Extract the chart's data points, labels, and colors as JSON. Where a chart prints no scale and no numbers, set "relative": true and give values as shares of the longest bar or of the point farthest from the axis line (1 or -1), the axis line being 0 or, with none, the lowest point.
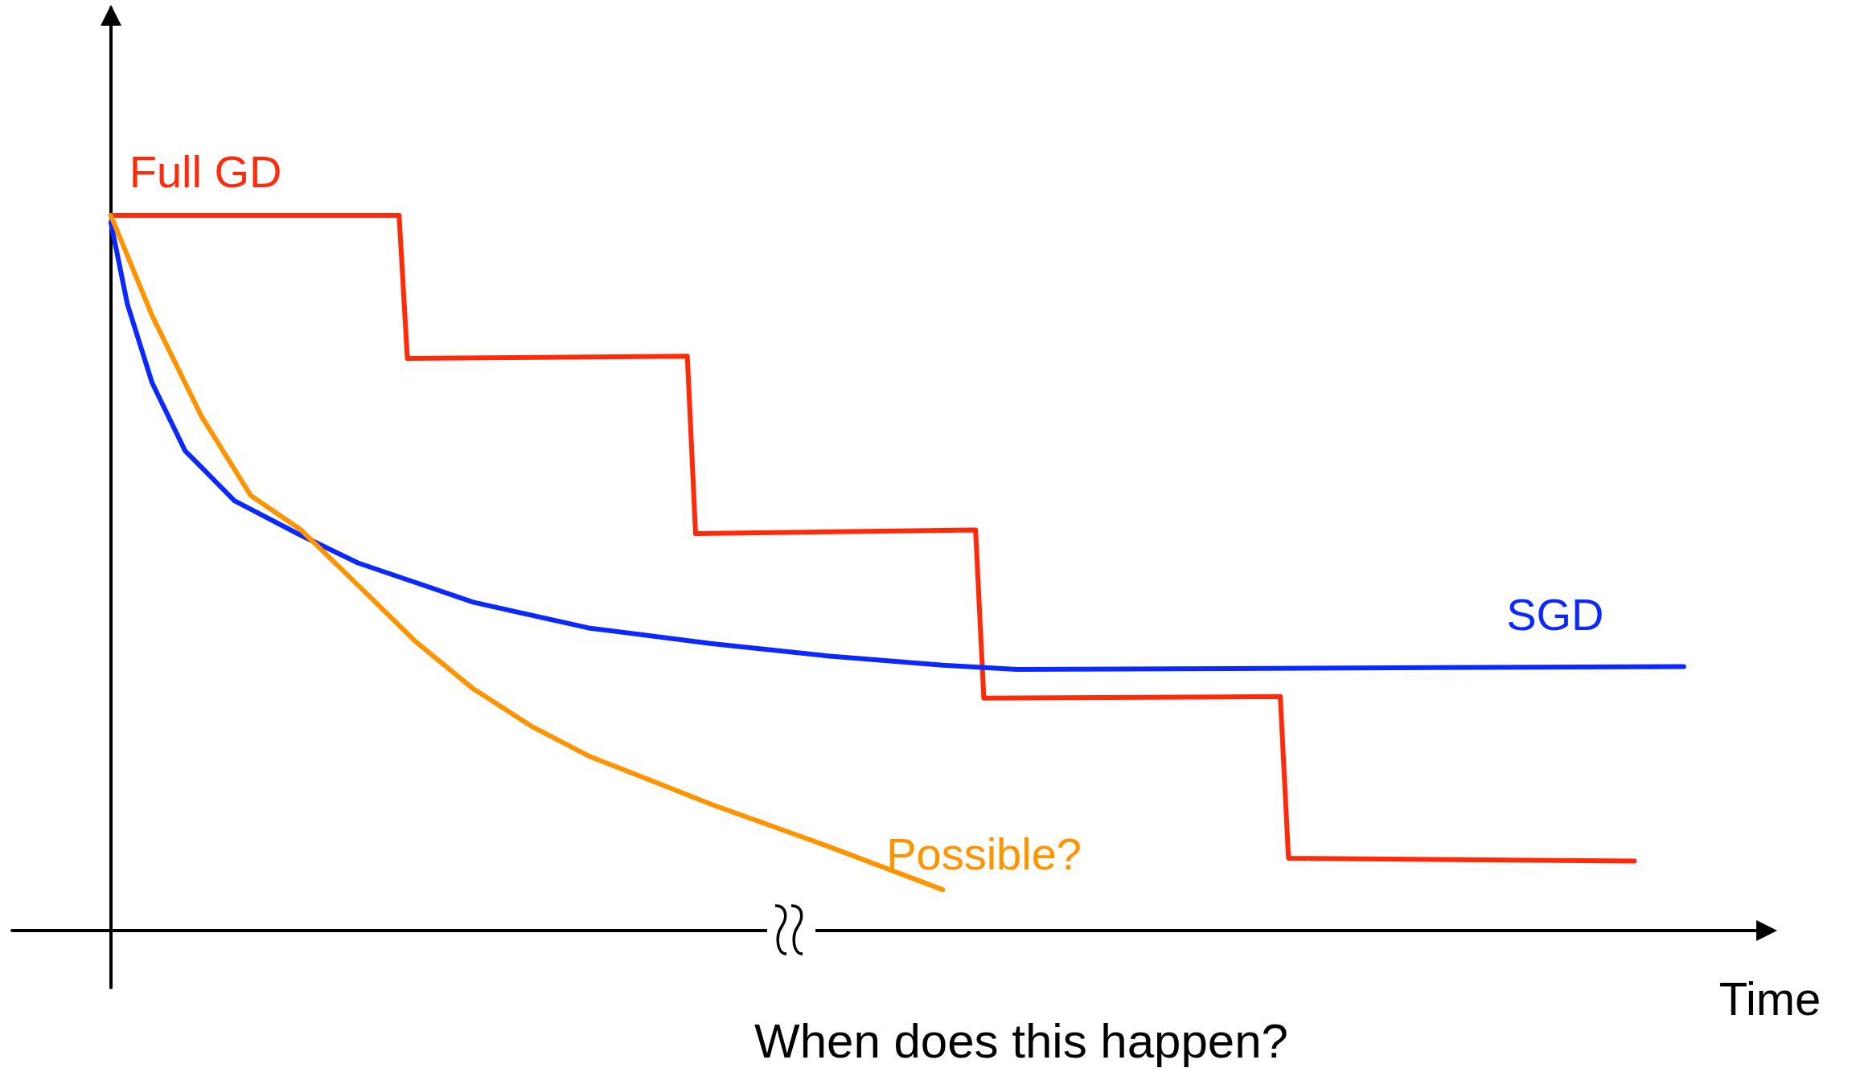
{
  "chart_data": {
    "type": "line",
    "relative": true,
    "xlabel": "Time",
    "grid": false,
    "legend": false,
    "marker": "none",
    "line_style": "solid",
    "annotations": [
      "When does this happen?"
    ],
    "categories": [
      null,
      null,
      null,
      null,
      null,
      null,
      null,
      null,
      null,
      null,
      null,
      null,
      null,
      null,
      null,
      null,
      null,
      null,
      null,
      null,
      null,
      null,
      null,
      null,
      null,
      null,
      null,
      null,
      null,
      null,
      null,
      null,
      null,
      null,
      null,
      null,
      null,
      null,
      null,
      null,
      null,
      null,
      null,
      null,
      null,
      null,
      null,
      null,
      null,
      null,
      null,
      null,
      null,
      null,
      null,
      null,
      null,
      null,
      null,
      null,
      null,
      null,
      null,
      null,
      null,
      null,
      null,
      null,
      null,
      null,
      null,
      null,
      null,
      null,
      null,
      null,
      null,
      null,
      null,
      null,
      null,
      null,
      null,
      null,
      null,
      null,
      null,
      null,
      null,
      null,
      null,
      null,
      null,
      null,
      null,
      null,
      null,
      null,
      null,
      null,
      null,
      null,
      null,
      null,
      null,
      null,
      null,
      null,
      null,
      null,
      null,
      null,
      null,
      null,
      null,
      null,
      null,
      null,
      null,
      null,
      null,
      null,
      null,
      null,
      null,
      null,
      null,
      null,
      null,
      null,
      null,
      null,
      null,
      null,
      null,
      null,
      null,
      null,
      null,
      null,
      null,
      null,
      null,
      null,
      null,
      null,
      null,
      null,
      null,
      null,
      null,
      null,
      null,
      null,
      null,
      null,
      null,
      null,
      null,
      null,
      null,
      null,
      null,
      null,
      null,
      null,
      null,
      null,
      null,
      null,
      null,
      null,
      null,
      null,
      null,
      null,
      null,
      null,
      null,
      null,
      null,
      null,
      null,
      null,
      null,
      null,
      null,
      null,
      null,
      null,
      null,
      null,
      null,
      null,
      null,
      null,
      null,
      null,
      null,
      null,
      null,
      null,
      null,
      null,
      null,
      null,
      null,
      null,
      null,
      null,
      null,
      null,
      null
    ],
    "series": [
      {
        "name": "Full GD",
        "color": "#ff2a0a",
        "values": [
          null,
          null,
          null,
          null,
          null,
          null,
          null,
          null,
          null,
          null,
          null,
          null,
          1.0,
          null,
          null,
          null,
          null,
          null,
          null,
          null,
          null,
          null,
          null,
          null,
          null,
          null,
          null,
          null,
          null,
          null,
          null,
          null,
          null,
          null,
          null,
          1.0,
          null,
          null,
          null,
          null,
          null,
          null,
          null,
          null,
          null,
          null,
          null,
          1.0,
          0.8,
          null,
          null,
          null,
          null,
          null,
          null,
          null,
          null,
          null,
          null,
          null,
          null,
          null,
          null,
          null,
          null,
          null,
          null,
          null,
          null,
          null,
          null,
          null,
          null,
          null,
          null,
          null,
          null,
          null,
          null,
          null,
          null,
          null,
          0.803,
          0.555,
          null,
          null,
          null,
          null,
          null,
          null,
          null,
          null,
          null,
          null,
          null,
          null,
          null,
          null,
          null,
          null,
          null,
          null,
          null,
          null,
          null,
          null,
          null,
          null,
          null,
          null,
          null,
          null,
          null,
          null,
          null,
          null,
          null,
          0.56,
          0.325,
          null,
          null,
          null,
          null,
          null,
          null,
          null,
          null,
          null,
          null,
          null,
          null,
          null,
          null,
          null,
          null,
          null,
          null,
          null,
          null,
          null,
          null,
          null,
          null,
          null,
          null,
          null,
          null,
          null,
          null,
          null,
          null,
          null,
          null,
          null,
          0.327,
          0.101,
          null,
          null,
          null,
          null,
          null,
          null,
          null,
          null,
          null,
          null,
          null,
          null,
          null,
          null,
          null,
          null,
          null,
          null,
          null,
          null,
          null,
          null,
          null,
          null,
          null,
          null,
          null,
          null,
          null,
          null,
          null,
          null,
          null,
          null,
          null,
          null,
          null,
          null,
          null,
          null,
          null,
          0.097,
          null,
          null,
          null,
          null,
          null,
          null,
          null,
          null,
          null,
          null,
          null,
          null,
          null,
          null,
          null
        ]
      },
      {
        "name": "SGD",
        "color": "#0a28ff",
        "values": [
          null,
          null,
          null,
          null,
          null,
          null,
          null,
          null,
          null,
          null,
          null,
          null,
          0.99,
          null,
          0.876,
          null,
          null,
          0.766,
          null,
          null,
          null,
          0.671,
          null,
          null,
          null,
          null,
          null,
          0.601,
          null,
          null,
          null,
          null,
          null,
          null,
          null,
          0.553,
          null,
          null,
          null,
          null,
          null,
          null,
          0.514,
          null,
          null,
          null,
          null,
          null,
          null,
          null,
          null,
          null,
          null,
          null,
          null,
          null,
          0.459,
          null,
          null,
          null,
          null,
          null,
          null,
          null,
          null,
          null,
          null,
          null,
          null,
          null,
          0.423,
          null,
          null,
          null,
          null,
          null,
          null,
          null,
          null,
          null,
          null,
          null,
          null,
          null,
          null,
          0.401,
          null,
          null,
          null,
          null,
          null,
          null,
          null,
          null,
          null,
          null,
          null,
          null,
          null,
          0.384,
          null,
          null,
          null,
          null,
          null,
          null,
          null,
          null,
          null,
          null,
          null,
          null,
          null,
          0.371,
          null,
          null,
          null,
          null,
          null,
          null,
          null,
          null,
          0.365,
          null,
          null,
          null,
          null,
          null,
          null,
          null,
          null,
          null,
          null,
          null,
          null,
          null,
          null,
          null,
          null,
          null,
          null,
          null,
          null,
          null,
          null,
          null,
          null,
          null,
          null,
          null,
          null,
          null,
          null,
          null,
          null,
          null,
          null,
          null,
          null,
          null,
          null,
          null,
          null,
          null,
          null,
          null,
          null,
          null,
          null,
          null,
          null,
          null,
          null,
          null,
          null,
          null,
          null,
          null,
          null,
          null,
          null,
          null,
          null,
          null,
          null,
          null,
          null,
          null,
          null,
          null,
          null,
          null,
          null,
          null,
          null,
          null,
          null,
          null,
          null,
          null,
          null,
          null,
          null,
          0.369,
          null,
          null,
          null,
          null,
          null,
          null,
          null,
          null,
          null
        ]
      },
      {
        "name": "Possible?",
        "color": "#ff9400",
        "values": [
          null,
          null,
          null,
          null,
          null,
          null,
          null,
          null,
          null,
          null,
          null,
          null,
          1.0,
          null,
          null,
          null,
          null,
          0.86,
          null,
          null,
          null,
          null,
          null,
          0.719,
          null,
          null,
          null,
          null,
          null,
          0.608,
          null,
          null,
          null,
          null,
          null,
          0.561,
          null,
          null,
          null,
          null,
          null,
          null,
          0.483,
          null,
          null,
          null,
          null,
          null,
          null,
          0.404,
          null,
          null,
          null,
          null,
          null,
          null,
          0.338,
          null,
          null,
          null,
          null,
          null,
          null,
          0.286,
          null,
          null,
          null,
          null,
          null,
          null,
          0.244,
          null,
          null,
          null,
          null,
          null,
          null,
          null,
          null,
          null,
          null,
          null,
          null,
          null,
          null,
          0.176,
          null,
          null,
          null,
          null,
          null,
          null,
          null,
          null,
          null,
          null,
          null,
          null,
          null,
          0.118,
          null,
          null,
          null,
          null,
          null,
          null,
          null,
          null,
          null,
          null,
          null,
          null,
          null,
          0.057,
          null,
          null,
          null,
          null,
          null,
          null,
          null,
          null,
          null,
          null,
          null,
          null,
          null,
          null,
          null,
          null,
          null,
          null,
          null,
          null,
          null,
          null,
          null,
          null,
          null,
          null,
          null,
          null,
          null,
          null,
          null,
          null,
          null,
          null,
          null,
          null,
          null,
          null,
          null,
          null,
          null,
          null,
          null,
          null,
          null,
          null,
          null,
          null,
          null,
          null,
          null,
          null,
          null,
          null,
          null,
          null,
          null,
          null,
          null,
          null,
          null,
          null,
          null,
          null,
          null,
          null,
          null,
          null,
          null,
          null,
          null,
          null,
          null,
          null,
          null,
          null,
          null,
          null,
          null,
          null,
          null,
          null,
          null,
          null,
          null,
          null,
          null,
          null,
          null,
          null,
          null,
          null,
          null,
          null,
          null,
          null,
          null,
          null,
          null
        ]
      }
    ]
  }
}
